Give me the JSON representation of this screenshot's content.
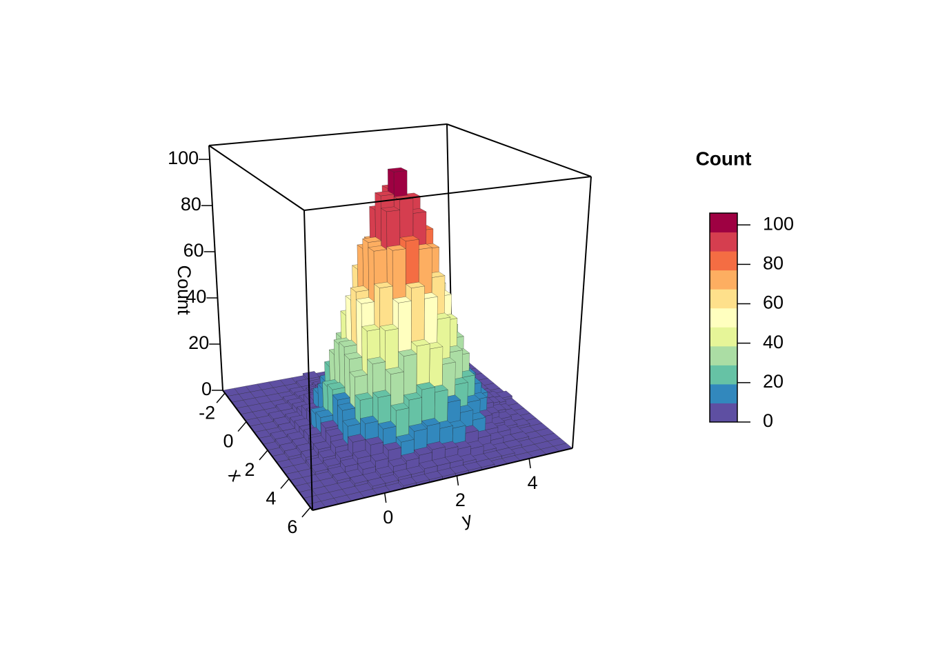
{
  "chart_data": {
    "type": "hist3d",
    "xlabel": "x",
    "ylabel": "y",
    "zlabel": "Count",
    "xbins": [
      -2.2,
      -1.78,
      -1.36,
      -0.94,
      -0.52,
      -0.1,
      0.32,
      0.74,
      1.16,
      1.58,
      2.0,
      2.42,
      2.84,
      3.26,
      3.68,
      4.1,
      4.52,
      4.94,
      5.36,
      5.78,
      6.2
    ],
    "ybins": [
      -2,
      -1.64,
      -1.28,
      -0.92,
      -0.56,
      -0.2,
      0.16,
      0.52,
      0.88,
      1.24,
      1.6,
      1.96,
      2.32,
      2.68,
      3.04,
      3.4,
      3.76,
      4.12,
      4.48,
      4.84,
      5.2
    ],
    "counts": [
      [
        0,
        0,
        0,
        0,
        0,
        0,
        0,
        1,
        0,
        0,
        1,
        0,
        0,
        0,
        1,
        0,
        0,
        0,
        0,
        0
      ],
      [
        0,
        0,
        0,
        0,
        0,
        0,
        1,
        0,
        1,
        1,
        2,
        1,
        1,
        0,
        1,
        0,
        0,
        0,
        0,
        0
      ],
      [
        0,
        0,
        0,
        0,
        0,
        1,
        1,
        2,
        3,
        2,
        3,
        4,
        2,
        2,
        1,
        1,
        0,
        0,
        0,
        0
      ],
      [
        0,
        0,
        0,
        0,
        1,
        2,
        3,
        4,
        5,
        7,
        6,
        5,
        6,
        3,
        2,
        1,
        1,
        0,
        0,
        0
      ],
      [
        0,
        0,
        0,
        1,
        2,
        3,
        5,
        8,
        11,
        12,
        14,
        13,
        10,
        7,
        5,
        3,
        1,
        1,
        0,
        0
      ],
      [
        0,
        0,
        1,
        1,
        3,
        6,
        9,
        14,
        19,
        25,
        24,
        22,
        20,
        15,
        9,
        5,
        2,
        1,
        0,
        0
      ],
      [
        0,
        0,
        1,
        2,
        4,
        8,
        15,
        24,
        31,
        39,
        42,
        37,
        33,
        22,
        16,
        9,
        4,
        2,
        1,
        0
      ],
      [
        0,
        0,
        1,
        3,
        7,
        13,
        23,
        34,
        48,
        58,
        60,
        56,
        49,
        35,
        21,
        12,
        6,
        3,
        1,
        0
      ],
      [
        0,
        1,
        1,
        4,
        8,
        17,
        30,
        45,
        63,
        74,
        82,
        76,
        61,
        46,
        28,
        16,
        9,
        4,
        1,
        0
      ],
      [
        0,
        1,
        2,
        4,
        10,
        20,
        36,
        53,
        73,
        88,
        96,
        90,
        75,
        54,
        34,
        21,
        10,
        4,
        2,
        1
      ],
      [
        0,
        1,
        2,
        5,
        11,
        21,
        37,
        58,
        77,
        95,
        104,
        93,
        79,
        56,
        38,
        20,
        11,
        5,
        2,
        0
      ],
      [
        0,
        1,
        2,
        4,
        9,
        19,
        34,
        55,
        75,
        90,
        94,
        88,
        73,
        53,
        35,
        19,
        10,
        5,
        1,
        0
      ],
      [
        0,
        0,
        2,
        4,
        8,
        17,
        29,
        46,
        62,
        76,
        79,
        75,
        63,
        45,
        30,
        17,
        8,
        4,
        1,
        0
      ],
      [
        0,
        0,
        1,
        3,
        6,
        13,
        22,
        35,
        47,
        57,
        62,
        57,
        48,
        34,
        23,
        13,
        6,
        3,
        1,
        0
      ],
      [
        0,
        0,
        1,
        2,
        4,
        9,
        15,
        24,
        32,
        38,
        41,
        39,
        32,
        23,
        15,
        8,
        4,
        2,
        1,
        0
      ],
      [
        0,
        0,
        0,
        1,
        3,
        5,
        9,
        14,
        20,
        23,
        26,
        24,
        19,
        14,
        10,
        5,
        3,
        1,
        0,
        0
      ],
      [
        0,
        0,
        0,
        1,
        1,
        3,
        5,
        8,
        10,
        13,
        14,
        12,
        11,
        8,
        5,
        3,
        1,
        1,
        0,
        0
      ],
      [
        0,
        0,
        0,
        0,
        1,
        1,
        2,
        4,
        5,
        6,
        7,
        6,
        5,
        4,
        2,
        1,
        1,
        0,
        0,
        0
      ],
      [
        0,
        0,
        0,
        0,
        0,
        1,
        1,
        2,
        2,
        3,
        3,
        3,
        2,
        1,
        1,
        1,
        0,
        0,
        0,
        0
      ],
      [
        0,
        0,
        0,
        0,
        0,
        0,
        0,
        1,
        1,
        1,
        1,
        1,
        1,
        1,
        0,
        0,
        0,
        0,
        0,
        0
      ]
    ],
    "xlim": [
      -2.2,
      6.2
    ],
    "ylim": [
      -2,
      5.2
    ],
    "zlim": [
      0,
      106
    ],
    "xticks": [
      -2,
      0,
      2,
      4,
      6
    ],
    "yticks": [
      0,
      2,
      4
    ],
    "zticks": [
      0,
      20,
      40,
      60,
      80,
      100
    ],
    "colors": [
      "#5E4FA2",
      "#3288BD",
      "#66C2A5",
      "#ABDDA4",
      "#E6F598",
      "#FFFFBF",
      "#FEE08B",
      "#FDAE61",
      "#F46D43",
      "#D53E4F",
      "#9E0142"
    ],
    "legend": {
      "title": "Count",
      "ticks": [
        0,
        20,
        40,
        60,
        80,
        100
      ]
    }
  }
}
